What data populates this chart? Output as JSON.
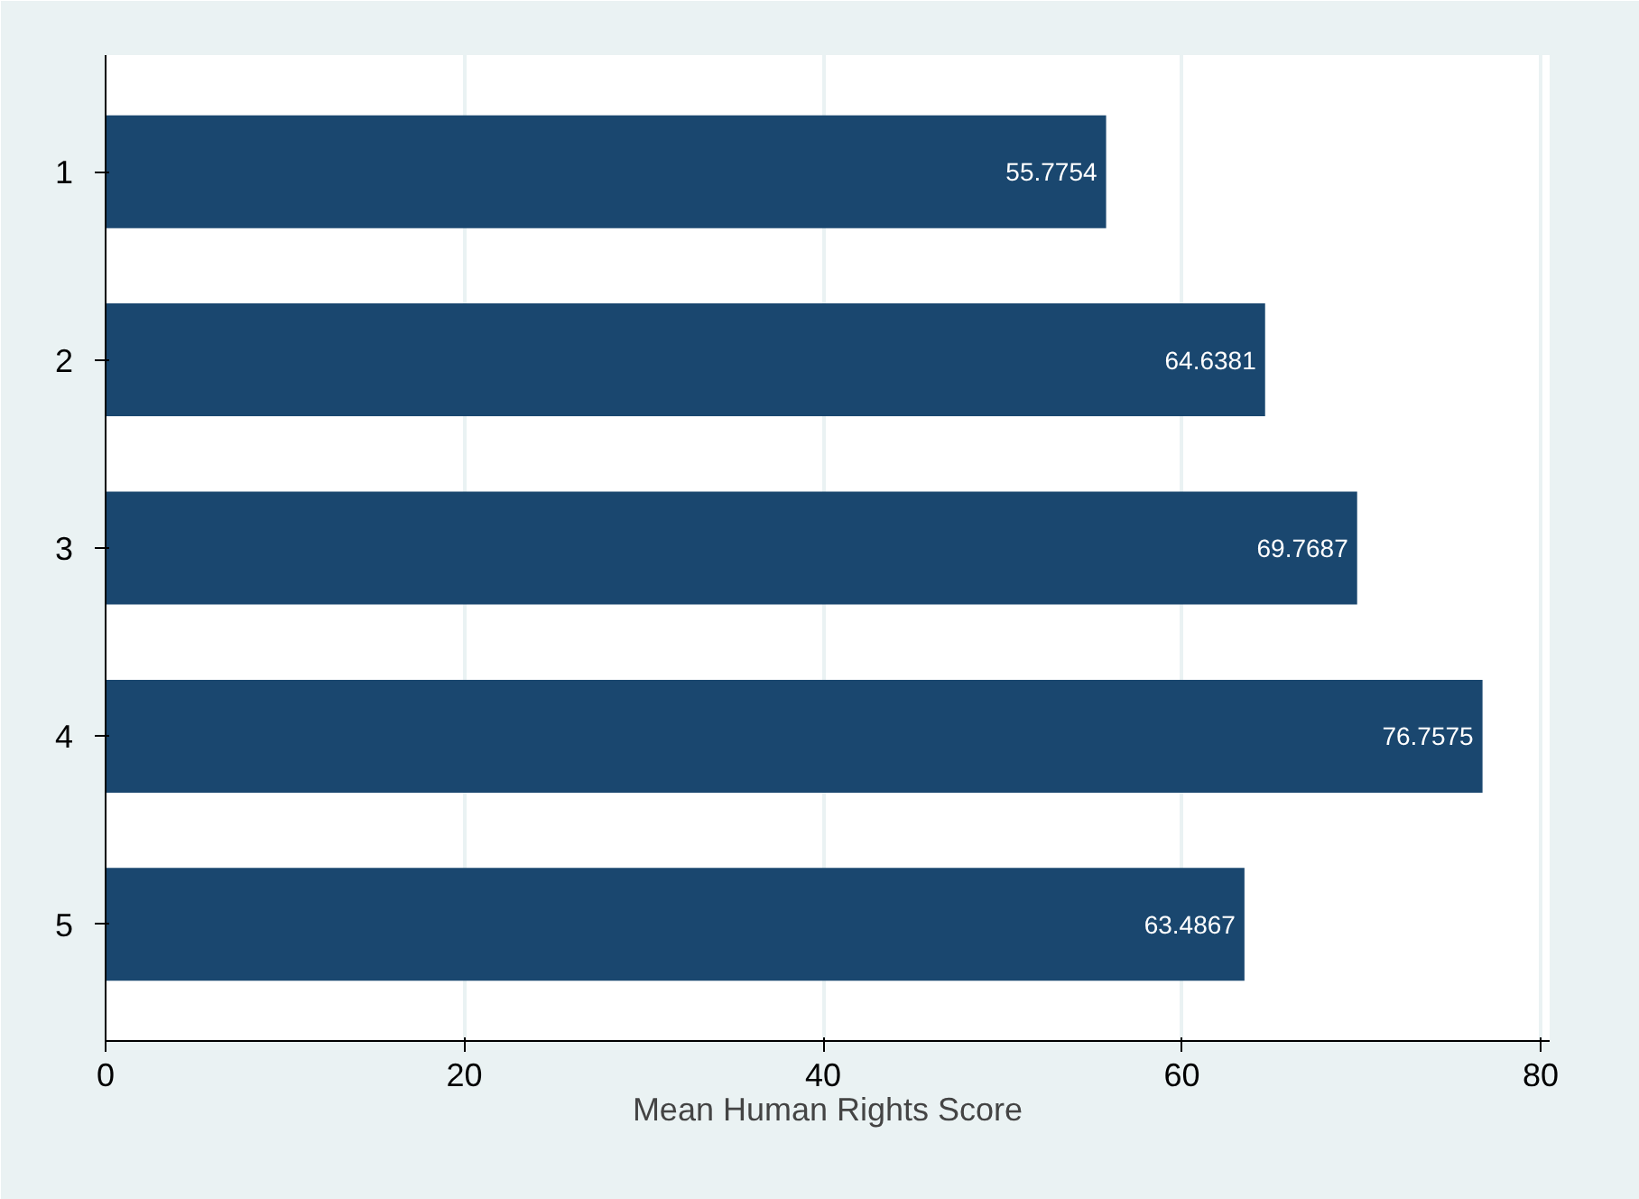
{
  "chart_data": {
    "type": "bar",
    "orientation": "horizontal",
    "categories": [
      "1",
      "2",
      "3",
      "4",
      "5"
    ],
    "values": [
      55.7754,
      64.6381,
      69.7687,
      76.7575,
      63.4867
    ],
    "color": "#1a476f",
    "xlim": [
      0,
      80.5
    ],
    "xticks": [
      0,
      20,
      40,
      60,
      80
    ],
    "xlabel": "Mean Human Rights Score",
    "grid": "x",
    "data_labels": true
  }
}
